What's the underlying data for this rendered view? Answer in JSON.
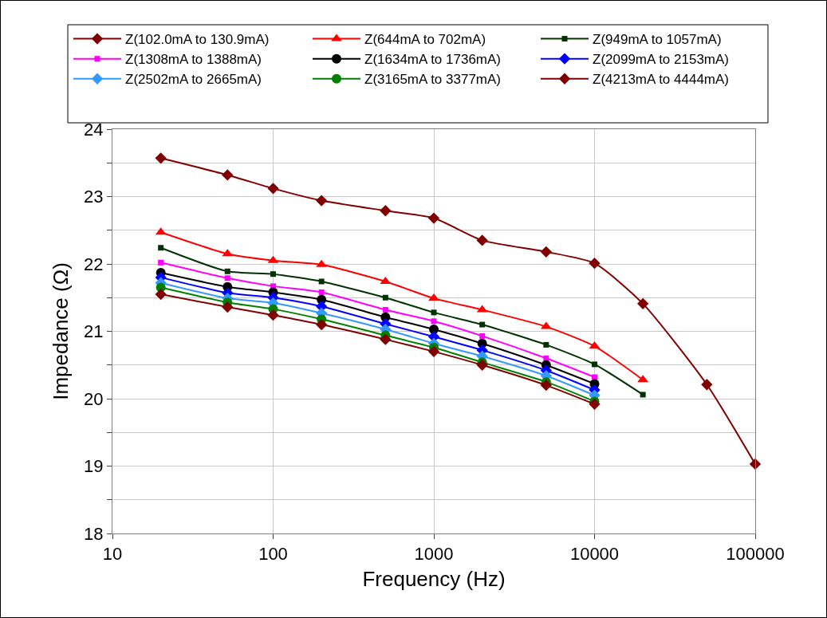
{
  "chart_data": {
    "type": "line",
    "xlabel": "Frequency (Hz)",
    "ylabel": "Impedance (Ω)",
    "log": "x",
    "grid": true,
    "legend": "top",
    "xlim": [
      10,
      100000
    ],
    "xticks": [
      10,
      100,
      1000,
      10000,
      100000
    ],
    "ylim": [
      18,
      24
    ],
    "yticks": [
      18,
      {
        "value": 18.5,
        "label": null
      },
      19,
      {
        "value": 19.5,
        "label": null
      },
      20,
      {
        "value": 20.5,
        "label": null
      },
      21,
      {
        "value": 21.5,
        "label": null
      },
      22,
      {
        "value": 22.5,
        "label": null
      },
      23,
      {
        "value": 23.5,
        "label": null
      },
      24
    ],
    "x": [
      20,
      52,
      100,
      200,
      500,
      1000,
      2000,
      5000,
      10000,
      20000,
      50000,
      100000
    ],
    "series": [
      {
        "name": "Z(102.0mA to 130.9mA)",
        "color": "#800000",
        "marker": "diamond",
        "values": [
          23.57,
          23.32,
          23.12,
          22.94,
          22.79,
          22.68,
          22.35,
          22.18,
          22.01,
          21.41,
          20.21,
          19.03
        ]
      },
      {
        "name": "Z(644mA to 702mA)",
        "color": "#ff0000",
        "marker": "triangle",
        "values": [
          22.47,
          22.15,
          22.05,
          21.99,
          21.74,
          21.49,
          21.32,
          21.07,
          20.78,
          20.28,
          null,
          null
        ]
      },
      {
        "name": "Z(949mA to 1057mA)",
        "color": "#003300",
        "marker": "square",
        "values": [
          22.24,
          21.89,
          21.85,
          21.74,
          21.5,
          21.28,
          21.1,
          20.8,
          20.51,
          20.06,
          null,
          null
        ]
      },
      {
        "name": "Z(1308mA to 1388mA)",
        "color": "#ff00ff",
        "marker": "square",
        "values": [
          22.02,
          21.79,
          21.67,
          21.58,
          21.32,
          21.15,
          20.93,
          20.6,
          20.32,
          null,
          null,
          null
        ]
      },
      {
        "name": "Z(1634mA to 1736mA)",
        "color": "#000000",
        "marker": "circle",
        "values": [
          21.87,
          21.66,
          21.58,
          21.47,
          21.21,
          21.03,
          20.82,
          20.5,
          20.22,
          null,
          null,
          null
        ]
      },
      {
        "name": "Z(2099mA to 2153mA)",
        "color": "#0000ff",
        "marker": "diamond",
        "values": [
          21.8,
          21.57,
          21.5,
          21.37,
          21.11,
          20.92,
          20.72,
          20.42,
          20.13,
          null,
          null,
          null
        ]
      },
      {
        "name": "Z(2502mA to 2665mA)",
        "color": "#3399ff",
        "marker": "diamond",
        "values": [
          21.72,
          21.49,
          21.42,
          21.27,
          21.03,
          20.82,
          20.63,
          20.34,
          20.05,
          null,
          null,
          null
        ]
      },
      {
        "name": "Z(3165mA to 3377mA)",
        "color": "#008000",
        "marker": "circle",
        "values": [
          21.65,
          21.43,
          21.33,
          21.18,
          20.94,
          20.76,
          20.54,
          20.25,
          19.96,
          null,
          null,
          null
        ]
      },
      {
        "name": "Z(4213mA to 4444mA)",
        "color": "#800000",
        "marker": "diamond",
        "values": [
          21.55,
          21.36,
          21.24,
          21.1,
          20.88,
          20.7,
          20.5,
          20.2,
          19.92,
          null,
          null,
          null
        ]
      }
    ]
  }
}
